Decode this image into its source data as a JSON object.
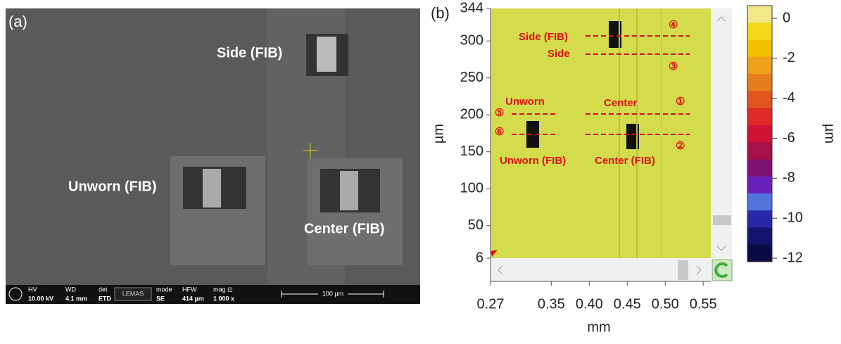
{
  "panel_a": {
    "label": "(a)",
    "annotations": [
      "Side (FIB)",
      "Unworn (FIB)",
      "Center (FIB)"
    ],
    "info_bar": {
      "fields": [
        {
          "name": "HV",
          "value": "10.00 kV"
        },
        {
          "name": "WD",
          "value": "4.1 mm"
        },
        {
          "name": "det",
          "value": "ETD"
        },
        {
          "name": "mode",
          "value": "SE"
        },
        {
          "name": "HFW",
          "value": "414 µm"
        },
        {
          "name": "mag ⊡",
          "value": "1 000 x"
        }
      ],
      "logo": "LEMAS",
      "scale_bar": "100 µm"
    }
  },
  "panel_b": {
    "label": "(b)",
    "x_label": "mm",
    "y_label": "µm",
    "xlim": [
      0.27,
      0.56
    ],
    "xticks": [
      0.27,
      0.35,
      {
        "value": 0.4,
        "label": "0.40"
      },
      0.45,
      {
        "value": 0.5,
        "label": "0.50"
      },
      0.55
    ],
    "ylim": [
      6,
      344
    ],
    "yticks": [
      6,
      50,
      100,
      150,
      200,
      250,
      300,
      344
    ],
    "annotations": [
      "Side (FIB)",
      "Side",
      "Unworn",
      "Center",
      "Unworn (FIB)",
      "Center (FIB)",
      "④",
      "③",
      "①",
      "⑤",
      "⑥",
      "②"
    ],
    "colorbar": {
      "label": "µm",
      "ticks": [
        0,
        -2,
        -4,
        -6,
        -8,
        -10,
        -12
      ],
      "colors": [
        "#f2e88a",
        "#f4d81a",
        "#f2c000",
        "#eda21a",
        "#e67d1c",
        "#e2541e",
        "#e02a26",
        "#d01236",
        "#a81048",
        "#7e1270",
        "#6a20b8",
        "#5274dc",
        "#2a26a8",
        "#14146e",
        "#0a0a44"
      ]
    }
  }
}
